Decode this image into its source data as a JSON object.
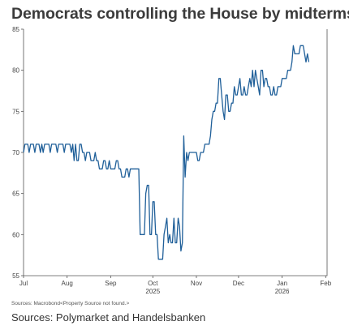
{
  "title": "Democrats controlling the House by midterms",
  "source_note": "Sources: Macrobond<Property Source not found.>",
  "sources": "Sources: Polymarket and Handelsbanken",
  "chart_data": {
    "type": "line",
    "title": "Democrats controlling the House by midterms",
    "xlabel": "",
    "ylabel": "",
    "ylim": [
      55,
      85
    ],
    "yticks": [
      55,
      60,
      65,
      70,
      75,
      80,
      85
    ],
    "xlim": [
      "2025-07-01",
      "2026-02-02"
    ],
    "xticks": [
      {
        "date": "2025-07-01",
        "label": "Jul",
        "sub": ""
      },
      {
        "date": "2025-08-01",
        "label": "Aug",
        "sub": ""
      },
      {
        "date": "2025-09-01",
        "label": "Sep",
        "sub": ""
      },
      {
        "date": "2025-10-01",
        "label": "Oct",
        "sub": "2025"
      },
      {
        "date": "2025-11-01",
        "label": "Nov",
        "sub": ""
      },
      {
        "date": "2025-12-01",
        "label": "Dec",
        "sub": ""
      },
      {
        "date": "2026-01-01",
        "label": "Jan",
        "sub": "2026"
      },
      {
        "date": "2026-02-01",
        "label": "Feb",
        "sub": ""
      }
    ],
    "grid": false,
    "line_color": "#1f5f99",
    "series": [
      {
        "name": "",
        "points": [
          [
            "2025-07-01",
            70
          ],
          [
            "2025-07-02",
            71
          ],
          [
            "2025-07-04",
            71
          ],
          [
            "2025-07-05",
            70
          ],
          [
            "2025-07-06",
            71
          ],
          [
            "2025-07-08",
            71
          ],
          [
            "2025-07-09",
            70
          ],
          [
            "2025-07-10",
            71
          ],
          [
            "2025-07-12",
            71
          ],
          [
            "2025-07-13",
            70
          ],
          [
            "2025-07-14",
            71
          ],
          [
            "2025-07-15",
            70
          ],
          [
            "2025-07-16",
            71
          ],
          [
            "2025-07-19",
            71
          ],
          [
            "2025-07-20",
            70
          ],
          [
            "2025-07-21",
            71
          ],
          [
            "2025-07-24",
            71
          ],
          [
            "2025-07-25",
            70
          ],
          [
            "2025-07-26",
            71
          ],
          [
            "2025-07-29",
            71
          ],
          [
            "2025-07-30",
            70
          ],
          [
            "2025-07-31",
            71
          ],
          [
            "2025-08-03",
            71
          ],
          [
            "2025-08-04",
            70
          ],
          [
            "2025-08-05",
            71
          ],
          [
            "2025-08-06",
            69
          ],
          [
            "2025-08-07",
            71
          ],
          [
            "2025-08-08",
            69
          ],
          [
            "2025-08-09",
            69
          ],
          [
            "2025-08-10",
            71
          ],
          [
            "2025-08-11",
            71
          ],
          [
            "2025-08-12",
            70
          ],
          [
            "2025-08-13",
            70
          ],
          [
            "2025-08-14",
            69
          ],
          [
            "2025-08-15",
            70
          ],
          [
            "2025-08-17",
            70
          ],
          [
            "2025-08-18",
            69
          ],
          [
            "2025-08-20",
            69
          ],
          [
            "2025-08-21",
            70
          ],
          [
            "2025-08-22",
            69
          ],
          [
            "2025-08-23",
            69
          ],
          [
            "2025-08-24",
            68
          ],
          [
            "2025-08-26",
            68
          ],
          [
            "2025-08-27",
            69
          ],
          [
            "2025-08-28",
            69
          ],
          [
            "2025-08-29",
            68
          ],
          [
            "2025-08-30",
            68
          ],
          [
            "2025-08-31",
            69
          ],
          [
            "2025-09-01",
            68
          ],
          [
            "2025-09-02",
            68
          ],
          [
            "2025-09-04",
            68
          ],
          [
            "2025-09-05",
            69
          ],
          [
            "2025-09-06",
            69
          ],
          [
            "2025-09-07",
            68
          ],
          [
            "2025-09-08",
            68
          ],
          [
            "2025-09-09",
            67
          ],
          [
            "2025-09-11",
            67
          ],
          [
            "2025-09-12",
            68
          ],
          [
            "2025-09-13",
            68
          ],
          [
            "2025-09-14",
            67
          ],
          [
            "2025-09-15",
            68
          ],
          [
            "2025-09-17",
            68
          ],
          [
            "2025-09-18",
            68
          ],
          [
            "2025-09-19",
            68
          ],
          [
            "2025-09-20",
            68
          ],
          [
            "2025-09-21",
            68
          ],
          [
            "2025-09-22",
            60
          ],
          [
            "2025-09-23",
            60
          ],
          [
            "2025-09-24",
            60
          ],
          [
            "2025-09-25",
            60
          ],
          [
            "2025-09-26",
            65
          ],
          [
            "2025-09-27",
            66
          ],
          [
            "2025-09-28",
            66
          ],
          [
            "2025-09-29",
            60
          ],
          [
            "2025-09-30",
            60
          ],
          [
            "2025-10-01",
            64
          ],
          [
            "2025-10-02",
            64
          ],
          [
            "2025-10-03",
            60
          ],
          [
            "2025-10-04",
            60
          ],
          [
            "2025-10-05",
            57
          ],
          [
            "2025-10-06",
            57
          ],
          [
            "2025-10-07",
            57
          ],
          [
            "2025-10-08",
            57
          ],
          [
            "2025-10-09",
            60
          ],
          [
            "2025-10-10",
            61
          ],
          [
            "2025-10-11",
            62
          ],
          [
            "2025-10-12",
            59
          ],
          [
            "2025-10-13",
            60
          ],
          [
            "2025-10-14",
            59
          ],
          [
            "2025-10-15",
            59
          ],
          [
            "2025-10-16",
            62
          ],
          [
            "2025-10-17",
            59
          ],
          [
            "2025-10-18",
            59
          ],
          [
            "2025-10-19",
            62
          ],
          [
            "2025-10-20",
            61
          ],
          [
            "2025-10-21",
            58
          ],
          [
            "2025-10-22",
            59
          ],
          [
            "2025-10-23",
            72
          ],
          [
            "2025-10-24",
            67
          ],
          [
            "2025-10-25",
            70
          ],
          [
            "2025-10-26",
            69
          ],
          [
            "2025-10-27",
            70
          ],
          [
            "2025-10-29",
            70
          ],
          [
            "2025-10-30",
            70
          ],
          [
            "2025-10-31",
            70
          ],
          [
            "2025-11-01",
            70
          ],
          [
            "2025-11-02",
            69
          ],
          [
            "2025-11-03",
            69
          ],
          [
            "2025-11-04",
            70
          ],
          [
            "2025-11-06",
            70
          ],
          [
            "2025-11-07",
            71
          ],
          [
            "2025-11-08",
            71
          ],
          [
            "2025-11-10",
            71
          ],
          [
            "2025-11-11",
            72
          ],
          [
            "2025-11-12",
            74
          ],
          [
            "2025-11-13",
            75
          ],
          [
            "2025-11-14",
            75
          ],
          [
            "2025-11-15",
            76
          ],
          [
            "2025-11-16",
            76
          ],
          [
            "2025-11-17",
            79
          ],
          [
            "2025-11-18",
            79
          ],
          [
            "2025-11-19",
            77
          ],
          [
            "2025-11-20",
            75
          ],
          [
            "2025-11-21",
            74
          ],
          [
            "2025-11-22",
            77
          ],
          [
            "2025-11-23",
            77
          ],
          [
            "2025-11-24",
            75
          ],
          [
            "2025-11-25",
            75
          ],
          [
            "2025-11-26",
            76
          ],
          [
            "2025-11-27",
            76
          ],
          [
            "2025-11-28",
            78
          ],
          [
            "2025-11-29",
            77
          ],
          [
            "2025-11-30",
            77
          ],
          [
            "2025-12-01",
            78
          ],
          [
            "2025-12-02",
            79
          ],
          [
            "2025-12-03",
            77
          ],
          [
            "2025-12-04",
            77
          ],
          [
            "2025-12-05",
            78
          ],
          [
            "2025-12-06",
            77
          ],
          [
            "2025-12-07",
            77
          ],
          [
            "2025-12-08",
            78
          ],
          [
            "2025-12-09",
            79
          ],
          [
            "2025-12-10",
            78
          ],
          [
            "2025-12-11",
            80
          ],
          [
            "2025-12-12",
            78
          ],
          [
            "2025-12-13",
            80
          ],
          [
            "2025-12-14",
            79
          ],
          [
            "2025-12-15",
            78
          ],
          [
            "2025-12-16",
            77
          ],
          [
            "2025-12-17",
            80
          ],
          [
            "2025-12-18",
            80
          ],
          [
            "2025-12-19",
            78
          ],
          [
            "2025-12-20",
            79
          ],
          [
            "2025-12-21",
            79
          ],
          [
            "2025-12-22",
            78
          ],
          [
            "2025-12-23",
            78
          ],
          [
            "2025-12-24",
            77
          ],
          [
            "2025-12-25",
            77
          ],
          [
            "2025-12-26",
            78
          ],
          [
            "2025-12-27",
            77
          ],
          [
            "2025-12-28",
            77
          ],
          [
            "2025-12-29",
            78
          ],
          [
            "2025-12-30",
            78
          ],
          [
            "2025-12-31",
            78
          ],
          [
            "2026-01-01",
            79
          ],
          [
            "2026-01-02",
            79
          ],
          [
            "2026-01-04",
            79
          ],
          [
            "2026-01-05",
            80
          ],
          [
            "2026-01-06",
            80
          ],
          [
            "2026-01-07",
            80
          ],
          [
            "2026-01-08",
            81
          ],
          [
            "2026-01-09",
            83
          ],
          [
            "2026-01-10",
            82
          ],
          [
            "2026-01-11",
            82
          ],
          [
            "2026-01-13",
            82
          ],
          [
            "2026-01-14",
            83
          ],
          [
            "2026-01-15",
            83
          ],
          [
            "2026-01-16",
            83
          ],
          [
            "2026-01-17",
            82
          ],
          [
            "2026-01-18",
            81
          ],
          [
            "2026-01-19",
            82
          ],
          [
            "2026-01-20",
            81
          ]
        ]
      }
    ]
  }
}
